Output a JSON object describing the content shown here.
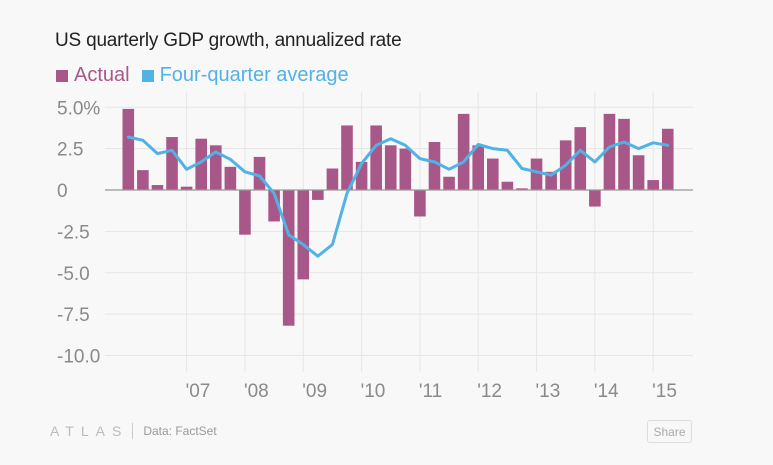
{
  "chart_data": {
    "type": "bar",
    "title": "US quarterly GDP growth, annualized rate",
    "xlabel": "",
    "ylabel": "",
    "ylim": [
      -11,
      5.5
    ],
    "grid": true,
    "legend_position": "top-left",
    "yticks": [
      5.0,
      2.5,
      0,
      -2.5,
      -5.0,
      -7.5,
      -10.0
    ],
    "ytick_labels": [
      "5.0%",
      "2.5",
      "0",
      "-2.5",
      "-5.0",
      "-7.5",
      "-10.0"
    ],
    "xtick_labels": [
      "'07",
      "'08",
      "'09",
      "'10",
      "'11",
      "'12",
      "'13",
      "'14",
      "'15"
    ],
    "categories": [
      "2006Q1",
      "2006Q2",
      "2006Q3",
      "2006Q4",
      "2007Q1",
      "2007Q2",
      "2007Q3",
      "2007Q4",
      "2008Q1",
      "2008Q2",
      "2008Q3",
      "2008Q4",
      "2009Q1",
      "2009Q2",
      "2009Q3",
      "2009Q4",
      "2010Q1",
      "2010Q2",
      "2010Q3",
      "2010Q4",
      "2011Q1",
      "2011Q2",
      "2011Q3",
      "2011Q4",
      "2012Q1",
      "2012Q2",
      "2012Q3",
      "2012Q4",
      "2013Q1",
      "2013Q2",
      "2013Q3",
      "2013Q4",
      "2014Q1",
      "2014Q2",
      "2014Q3",
      "2014Q4",
      "2015Q1",
      "2015Q2"
    ],
    "series": [
      {
        "name": "Actual",
        "type": "bar",
        "color": "#a85888",
        "values": [
          4.9,
          1.2,
          0.3,
          3.2,
          0.2,
          3.1,
          2.7,
          1.4,
          -2.7,
          2.0,
          -1.9,
          -8.2,
          -5.4,
          -0.6,
          1.3,
          3.9,
          1.7,
          3.9,
          2.7,
          2.5,
          -1.6,
          2.9,
          0.8,
          4.6,
          2.7,
          1.9,
          0.5,
          0.1,
          1.9,
          1.1,
          3.0,
          3.8,
          -1.0,
          4.6,
          4.3,
          2.1,
          0.6,
          3.7
        ]
      },
      {
        "name": "Four-quarter average",
        "type": "line",
        "color": "#51b2e5",
        "values": [
          3.2,
          3.0,
          2.2,
          2.4,
          1.25,
          1.7,
          2.3,
          1.85,
          1.1,
          0.85,
          -0.2,
          -2.7,
          -3.3,
          -4.0,
          -3.3,
          -0.2,
          1.6,
          2.7,
          3.1,
          2.7,
          1.9,
          1.7,
          1.25,
          1.7,
          2.75,
          2.5,
          2.4,
          1.3,
          1.1,
          0.9,
          1.5,
          2.4,
          1.7,
          2.6,
          2.9,
          2.5,
          2.85,
          2.7
        ]
      }
    ]
  },
  "legend": [
    {
      "label": "Actual",
      "color": "#a85888"
    },
    {
      "label": "Four-quarter average",
      "color": "#51b2e5"
    }
  ],
  "footer": {
    "logo": "ATLAS",
    "source": "Data: FactSet",
    "share_label": "Share"
  }
}
